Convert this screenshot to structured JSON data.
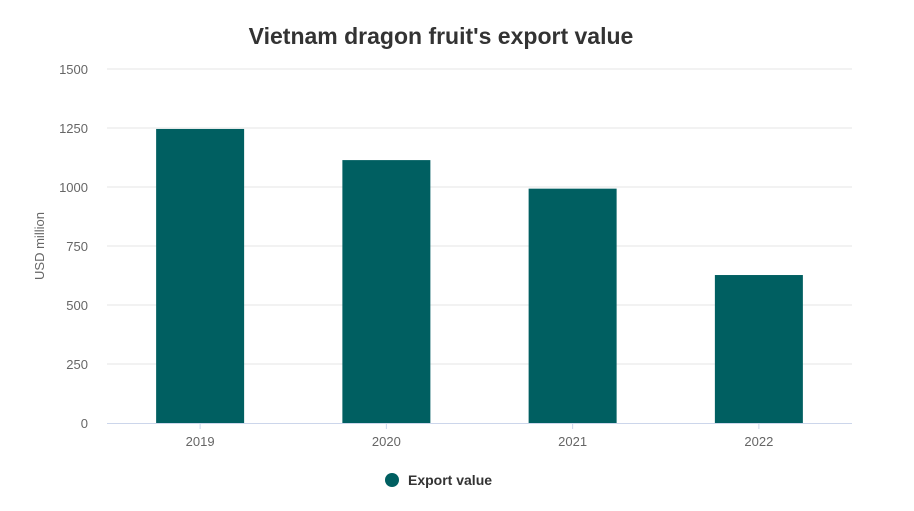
{
  "chart_data": {
    "type": "bar",
    "title": "Vietnam dragon fruit's export value",
    "xlabel": "",
    "ylabel": "USD million",
    "categories": [
      "2019",
      "2020",
      "2021",
      "2022"
    ],
    "series": [
      {
        "name": "Export value",
        "values": [
          1246,
          1114,
          993,
          627
        ]
      }
    ],
    "ylim": [
      0,
      1500
    ],
    "yticks": [
      "0",
      "250",
      "500",
      "750",
      "1000",
      "1250",
      "1500"
    ],
    "grid": true,
    "legend": "bottom-center",
    "colors": {
      "bar": "#005f61",
      "grid": "#e6e6e6",
      "axis": "#ccd6eb"
    }
  }
}
